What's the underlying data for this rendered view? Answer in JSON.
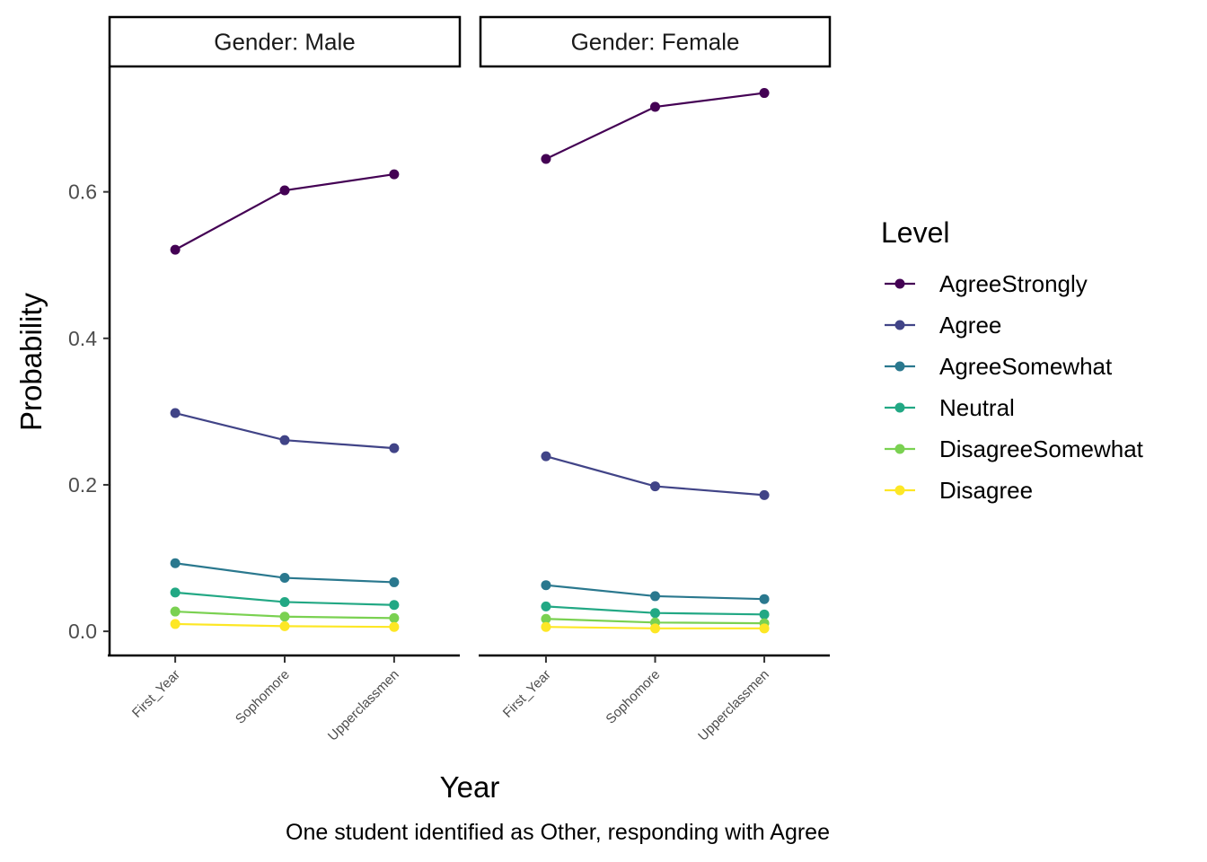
{
  "chart_data": {
    "type": "line",
    "categories": [
      "First_Year",
      "Sophomore",
      "Upperclassmen"
    ],
    "xlabel": "Year",
    "ylabel": "Probability",
    "caption": "One student identified as Other, responding with Agree",
    "ylim": [
      -0.033,
      0.77
    ],
    "yticks": [
      0.0,
      0.2,
      0.4,
      0.6
    ],
    "ytick_labels": [
      "0.0",
      "0.2",
      "0.4",
      "0.6"
    ],
    "grid": false,
    "legend": {
      "title": "Level",
      "placement": "right",
      "entries": [
        "AgreeStrongly",
        "Agree",
        "AgreeSomewhat",
        "Neutral",
        "DisagreeSomewhat",
        "Disagree"
      ]
    },
    "colors": {
      "AgreeStrongly": "#440154",
      "Agree": "#414487",
      "AgreeSomewhat": "#2a788e",
      "Neutral": "#22a884",
      "DisagreeSomewhat": "#7ad151",
      "Disagree": "#fde725"
    },
    "panels": [
      {
        "strip": "Gender: Male",
        "series": [
          {
            "name": "AgreeStrongly",
            "values": [
              0.521,
              0.602,
              0.624
            ]
          },
          {
            "name": "Agree",
            "values": [
              0.298,
              0.261,
              0.25
            ]
          },
          {
            "name": "AgreeSomewhat",
            "values": [
              0.093,
              0.073,
              0.067
            ]
          },
          {
            "name": "Neutral",
            "values": [
              0.053,
              0.04,
              0.036
            ]
          },
          {
            "name": "DisagreeSomewhat",
            "values": [
              0.027,
              0.02,
              0.018
            ]
          },
          {
            "name": "Disagree",
            "values": [
              0.01,
              0.007,
              0.006
            ]
          }
        ]
      },
      {
        "strip": "Gender: Female",
        "series": [
          {
            "name": "AgreeStrongly",
            "values": [
              0.645,
              0.716,
              0.735
            ]
          },
          {
            "name": "Agree",
            "values": [
              0.239,
              0.198,
              0.186
            ]
          },
          {
            "name": "AgreeSomewhat",
            "values": [
              0.063,
              0.048,
              0.044
            ]
          },
          {
            "name": "Neutral",
            "values": [
              0.034,
              0.025,
              0.023
            ]
          },
          {
            "name": "DisagreeSomewhat",
            "values": [
              0.017,
              0.012,
              0.011
            ]
          },
          {
            "name": "Disagree",
            "values": [
              0.006,
              0.004,
              0.004
            ]
          }
        ]
      }
    ]
  }
}
